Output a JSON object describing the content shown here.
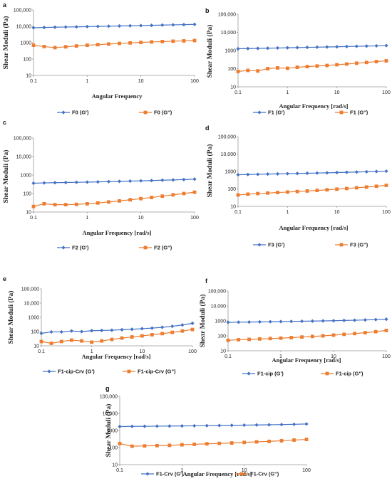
{
  "chart_data": [
    {
      "panel_label": "a",
      "type": "line",
      "xlabel": "Angular Frequency",
      "ylabel": "Shear Moduli (Pa)",
      "x_scale": "log",
      "y_scale": "log",
      "xlim": [
        0.1,
        100
      ],
      "ylim": [
        10,
        100000
      ],
      "x_ticks": [
        "0.1",
        "1",
        "10",
        "100"
      ],
      "y_ticks": [
        "10",
        "100",
        "1000",
        "10,000",
        "100,000"
      ],
      "x": [
        0.1,
        0.158,
        0.251,
        0.398,
        0.631,
        1,
        1.58,
        2.51,
        3.98,
        6.31,
        10,
        15.8,
        25.1,
        39.8,
        63.1,
        100
      ],
      "series": [
        {
          "name": "F0 (G')",
          "color": "#4472c4",
          "marker": "diamond",
          "values": [
            8200,
            8500,
            8800,
            9100,
            9300,
            9600,
            9900,
            10200,
            10500,
            10800,
            11100,
            11500,
            11900,
            12300,
            12700,
            13200
          ]
        },
        {
          "name": "F0 (G\")",
          "color": "#ed7d31",
          "marker": "square",
          "values": [
            700,
            580,
            500,
            560,
            630,
            700,
            760,
            830,
            900,
            970,
            1040,
            1110,
            1170,
            1230,
            1290,
            1350
          ]
        }
      ]
    },
    {
      "panel_label": "b",
      "type": "line",
      "xlabel": "Angular Frequency [rad/s]",
      "ylabel": "Shear Moduli (Pa)",
      "x_scale": "log",
      "y_scale": "log",
      "xlim": [
        0.1,
        100
      ],
      "ylim": [
        10,
        100000
      ],
      "x_ticks": [
        "0.1",
        "1",
        "10",
        "100"
      ],
      "y_ticks": [
        "10",
        "100",
        "1000",
        "10,000",
        "100,000"
      ],
      "x": [
        0.1,
        0.158,
        0.251,
        0.398,
        0.631,
        1,
        1.58,
        2.51,
        3.98,
        6.31,
        10,
        15.8,
        25.1,
        39.8,
        63.1,
        100
      ],
      "series": [
        {
          "name": "F1   (G')",
          "color": "#4472c4",
          "marker": "diamond",
          "values": [
            1250,
            1280,
            1310,
            1340,
            1380,
            1420,
            1450,
            1490,
            1530,
            1570,
            1610,
            1660,
            1710,
            1760,
            1810,
            1870
          ]
        },
        {
          "name": "F1   (G\")",
          "color": "#ed7d31",
          "marker": "square",
          "values": [
            70,
            80,
            75,
            100,
            110,
            105,
            120,
            130,
            140,
            150,
            165,
            180,
            200,
            220,
            245,
            270
          ]
        }
      ]
    },
    {
      "panel_label": "c",
      "type": "line",
      "xlabel": "Angular Frequency [rad/s]",
      "ylabel": "Shear Moduli (Pa)",
      "x_scale": "log",
      "y_scale": "log",
      "xlim": [
        0.1,
        100
      ],
      "ylim": [
        10,
        100000
      ],
      "x_ticks": [
        "0.1",
        "1",
        "10",
        "100"
      ],
      "y_ticks": [
        "10",
        "100",
        "1000",
        "10,000",
        "100,000"
      ],
      "x": [
        0.1,
        0.158,
        0.251,
        0.398,
        0.631,
        1,
        1.58,
        2.51,
        3.98,
        6.31,
        10,
        15.8,
        25.1,
        39.8,
        63.1,
        100
      ],
      "series": [
        {
          "name": "F2 (G')",
          "color": "#4472c4",
          "marker": "diamond",
          "values": [
            360,
            375,
            385,
            395,
            405,
            415,
            425,
            440,
            455,
            470,
            485,
            505,
            525,
            545,
            570,
            600
          ]
        },
        {
          "name": "F2 (G\")",
          "color": "#ed7d31",
          "marker": "square",
          "values": [
            20,
            28,
            25,
            25,
            26,
            28,
            31,
            35,
            40,
            46,
            53,
            61,
            72,
            85,
            100,
            118
          ]
        }
      ]
    },
    {
      "panel_label": "d",
      "type": "line",
      "xlabel": "Angular Frequency [rad/s]",
      "ylabel": "Shear Moduli (Pa)",
      "x_scale": "log",
      "y_scale": "log",
      "xlim": [
        0.1,
        100
      ],
      "ylim": [
        10,
        100000
      ],
      "x_ticks": [
        "0.1",
        "1",
        "10",
        "100"
      ],
      "y_ticks": [
        "10",
        "100",
        "1000",
        "10,000",
        "100,000"
      ],
      "x": [
        0.1,
        0.158,
        0.251,
        0.398,
        0.631,
        1,
        1.58,
        2.51,
        3.98,
        6.31,
        10,
        15.8,
        25.1,
        39.8,
        63.1,
        100
      ],
      "series": [
        {
          "name": "F3 (G')",
          "color": "#4472c4",
          "marker": "diamond",
          "values": [
            650,
            670,
            690,
            710,
            730,
            750,
            770,
            790,
            815,
            840,
            870,
            900,
            930,
            965,
            1000,
            1040
          ]
        },
        {
          "name": "F3 (G\")",
          "color": "#ed7d31",
          "marker": "square",
          "values": [
            45,
            50,
            54,
            58,
            62,
            66,
            71,
            76,
            82,
            89,
            97,
            106,
            116,
            128,
            142,
            160
          ]
        }
      ]
    },
    {
      "panel_label": "e",
      "type": "line",
      "xlabel": "Angular Frequency [rad/s]",
      "ylabel": "Shear Moduli (Pa)",
      "x_scale": "log",
      "y_scale": "log",
      "xlim": [
        0.1,
        100
      ],
      "ylim": [
        10,
        100000
      ],
      "x_ticks": [
        "0.1",
        "1",
        "10",
        "100"
      ],
      "y_ticks": [
        "10",
        "100",
        "1000",
        "10,000",
        "100,000"
      ],
      "x": [
        0.1,
        0.158,
        0.251,
        0.398,
        0.631,
        1,
        1.58,
        2.51,
        3.98,
        6.31,
        10,
        15.8,
        25.1,
        39.8,
        63.1,
        100
      ],
      "series": [
        {
          "name": "F1-cip-Crv (G')",
          "color": "#4472c4",
          "marker": "diamond",
          "values": [
            75,
            95,
            95,
            110,
            100,
            115,
            120,
            125,
            135,
            145,
            160,
            175,
            200,
            235,
            290,
            380
          ]
        },
        {
          "name": "F1-cip-Crv (G\")",
          "color": "#ed7d31",
          "marker": "square",
          "values": [
            20,
            15,
            20,
            25,
            22,
            18,
            22,
            28,
            35,
            42,
            50,
            60,
            72,
            88,
            110,
            140
          ]
        }
      ]
    },
    {
      "panel_label": "f",
      "type": "line",
      "xlabel": "Angular Frequency [rad/s]",
      "ylabel": "Shear Moduli (Pa)",
      "x_scale": "log",
      "y_scale": "log",
      "xlim": [
        0.1,
        100
      ],
      "ylim": [
        10,
        100000
      ],
      "x_ticks": [
        "0.1",
        "1",
        "10",
        "100"
      ],
      "y_ticks": [
        "10",
        "100",
        "1000",
        "10,000",
        "100,000"
      ],
      "x": [
        0.1,
        0.158,
        0.251,
        0.398,
        0.631,
        1,
        1.58,
        2.51,
        3.98,
        6.31,
        10,
        15.8,
        25.1,
        39.8,
        63.1,
        100
      ],
      "series": [
        {
          "name": "F1-cip (G')",
          "color": "#4472c4",
          "marker": "diamond",
          "values": [
            800,
            820,
            840,
            860,
            880,
            900,
            925,
            950,
            975,
            1000,
            1030,
            1070,
            1110,
            1160,
            1220,
            1300
          ]
        },
        {
          "name": "F1-cip (G\")",
          "color": "#ed7d31",
          "marker": "square",
          "values": [
            50,
            55,
            58,
            62,
            66,
            70,
            76,
            83,
            91,
            100,
            112,
            126,
            142,
            162,
            190,
            230
          ]
        }
      ]
    },
    {
      "panel_label": "g",
      "type": "line",
      "xlabel": "Angular Frequency [rad/s]",
      "ylabel": "Shear Moduli (Pa)",
      "x_scale": "log",
      "y_scale": "log",
      "xlim": [
        0.1,
        100
      ],
      "ylim": [
        10,
        100000
      ],
      "x_ticks": [
        "0.1",
        "1",
        "10",
        "100"
      ],
      "y_ticks": [
        "10",
        "100",
        "1000",
        "10,000",
        "100,000"
      ],
      "x": [
        0.1,
        0.158,
        0.251,
        0.398,
        0.631,
        1,
        1.58,
        2.51,
        3.98,
        6.31,
        10,
        15.8,
        25.1,
        39.8,
        63.1,
        100
      ],
      "series": [
        {
          "name": "F1-Crv (G')",
          "color": "#4472c4",
          "marker": "diamond",
          "values": [
            1700,
            1730,
            1760,
            1790,
            1820,
            1850,
            1880,
            1920,
            1960,
            2000,
            2050,
            2100,
            2160,
            2220,
            2300,
            2400
          ]
        },
        {
          "name": "F1-Crv (G\")",
          "color": "#ed7d31",
          "marker": "square",
          "values": [
            170,
            120,
            125,
            130,
            135,
            145,
            155,
            165,
            175,
            185,
            200,
            215,
            230,
            250,
            275,
            300
          ]
        }
      ]
    }
  ]
}
